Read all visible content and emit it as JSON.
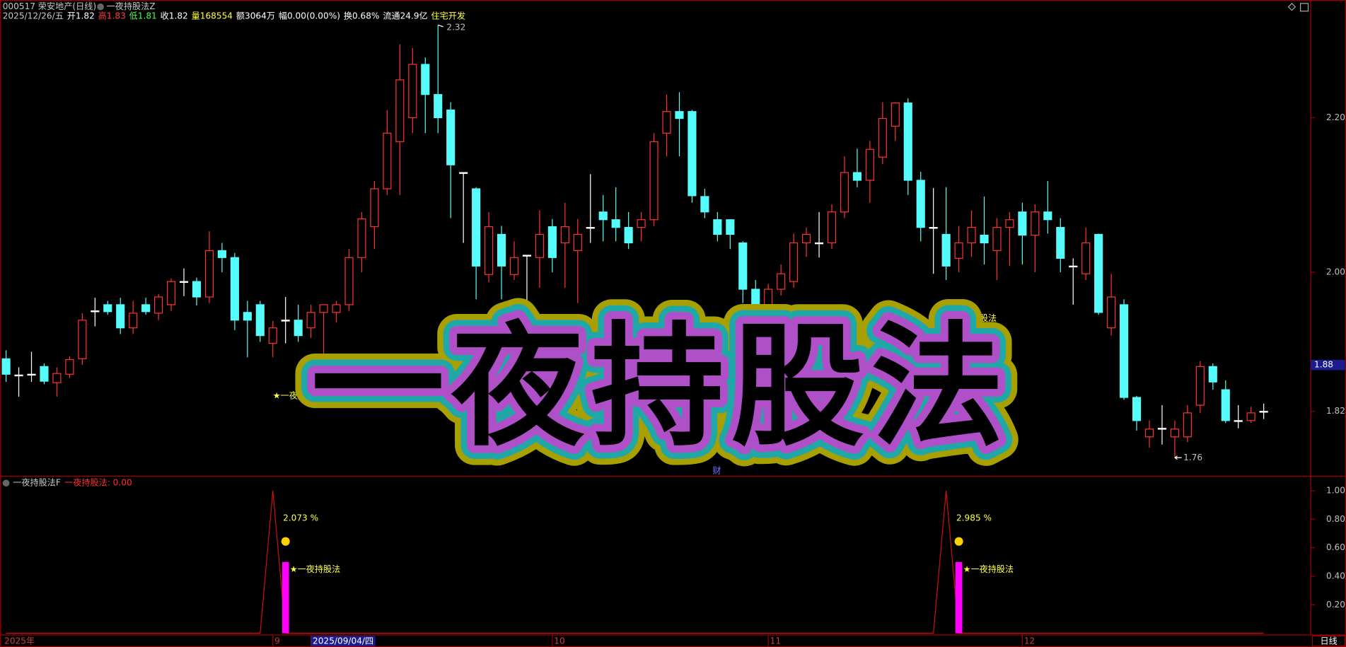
{
  "header": {
    "items": [
      {
        "text": "000517 荣安地产(日线)",
        "color": "#c8c8c8",
        "row": 1
      },
      {
        "text": "一夜持股法Z",
        "color": "#c8c8c8",
        "row": 1
      },
      {
        "text": "2025/12/26/五",
        "color": "#c8c8c8",
        "row": 2
      },
      {
        "text": "开1.82",
        "color": "#ffffff",
        "row": 2
      },
      {
        "text": "高1.83",
        "color": "#ff4040",
        "row": 2
      },
      {
        "text": "低1.81",
        "color": "#40ff40",
        "row": 2
      },
      {
        "text": "收1.82",
        "color": "#ffffff",
        "row": 2
      },
      {
        "text": "量168554",
        "color": "#ffff40",
        "row": 2
      },
      {
        "text": "额3064万",
        "color": "#ffffff",
        "row": 2
      },
      {
        "text": "幅0.00(0.00%)",
        "color": "#ffffff",
        "row": 2
      },
      {
        "text": "换0.68%",
        "color": "#ffffff",
        "row": 2
      },
      {
        "text": "流通24.9亿",
        "color": "#ffffff",
        "row": 2
      },
      {
        "text": "住宅开发",
        "color": "#ffff40",
        "row": 2
      }
    ]
  },
  "overlay_title": "一夜持股法",
  "footer_mark": "财",
  "period_button": "日线",
  "chart_data": [
    {
      "type": "candlestick",
      "up_color": "#ff3232",
      "down_color": "#54fcfc",
      "flat_color": "#ffffff",
      "categories": [
        "2025年",
        null,
        null,
        null,
        null,
        null,
        null,
        null,
        null,
        null,
        null,
        null,
        null,
        null,
        null,
        null,
        null,
        null,
        null,
        null,
        null,
        "9",
        null,
        null,
        "2025/09/04/四",
        null,
        null,
        null,
        null,
        null,
        null,
        null,
        null,
        null,
        null,
        null,
        null,
        null,
        null,
        null,
        null,
        null,
        null,
        "10",
        null,
        null,
        null,
        null,
        null,
        null,
        null,
        null,
        null,
        null,
        null,
        null,
        null,
        null,
        null,
        null,
        "11",
        null,
        null,
        null,
        null,
        null,
        null,
        null,
        null,
        null,
        null,
        null,
        null,
        null,
        null,
        null,
        null,
        null,
        null,
        null,
        "12",
        null,
        null,
        null,
        null,
        null,
        null,
        null,
        null,
        null,
        null,
        null,
        null,
        null,
        null,
        null,
        null,
        null,
        null,
        null
      ],
      "open": [
        1.888,
        1.867,
        1.868,
        1.878,
        1.857,
        1.868,
        1.888,
        1.95,
        1.958,
        1.958,
        1.928,
        1.958,
        1.947,
        1.958,
        1.988,
        1.988,
        1.968,
        2.028,
        2.019,
        1.948,
        1.958,
        1.908,
        1.938,
        1.938,
        1.928,
        1.948,
        1.948,
        1.958,
        2.019,
        2.059,
        2.108,
        2.169,
        2.2,
        2.269,
        2.23,
        2.21,
        2.129,
        2.108,
        1.997,
        2.049,
        1.997,
        2.022,
        2.019,
        2.059,
        2.038,
        2.028,
        2.058,
        2.078,
        2.068,
        2.058,
        2.058,
        2.068,
        2.18,
        2.208,
        2.208,
        2.098,
        2.068,
        2.068,
        2.038,
        1.978,
        1.958,
        1.978,
        1.988,
        2.038,
        2.038,
        2.038,
        2.078,
        2.129,
        2.119,
        2.149,
        2.189,
        2.219,
        2.119,
        2.058,
        2.049,
        2.018,
        2.038,
        2.048,
        2.028,
        2.058,
        2.078,
        2.048,
        2.078,
        2.058,
        2.008,
        1.998,
        2.049,
        1.928,
        1.958,
        1.838,
        1.787,
        1.798,
        1.787,
        1.787,
        1.828,
        1.878,
        1.848,
        1.808,
        1.808,
        1.82
      ],
      "high": [
        1.899,
        1.877,
        1.897,
        1.882,
        1.877,
        1.891,
        1.947,
        1.967,
        1.963,
        1.967,
        1.963,
        1.967,
        1.972,
        1.992,
        2.005,
        1.993,
        2.053,
        2.038,
        2.025,
        1.963,
        1.963,
        1.937,
        1.968,
        1.958,
        1.958,
        1.958,
        1.963,
        2.03,
        2.078,
        2.118,
        2.21,
        2.295,
        2.29,
        2.278,
        2.32,
        2.22,
        2.129,
        2.11,
        2.078,
        2.06,
        2.04,
        2.022,
        2.08,
        2.069,
        2.09,
        2.069,
        2.127,
        2.1,
        2.11,
        2.078,
        2.078,
        2.18,
        2.23,
        2.233,
        2.21,
        2.108,
        2.078,
        2.068,
        2.04,
        1.99,
        1.985,
        2.01,
        2.05,
        2.058,
        2.078,
        2.088,
        2.15,
        2.16,
        2.17,
        2.22,
        2.22,
        2.225,
        2.13,
        2.109,
        2.11,
        2.06,
        2.08,
        2.098,
        2.07,
        2.078,
        2.09,
        2.088,
        2.118,
        2.07,
        2.018,
        2.058,
        2.05,
        1.998,
        1.965,
        1.84,
        1.808,
        1.828,
        1.808,
        1.828,
        1.885,
        1.882,
        1.86,
        1.828,
        1.826,
        1.83
      ],
      "low": [
        1.858,
        1.839,
        1.858,
        1.855,
        1.839,
        1.863,
        1.88,
        1.93,
        1.945,
        1.92,
        1.92,
        1.945,
        1.938,
        1.95,
        1.969,
        1.957,
        1.96,
        2.0,
        1.925,
        1.89,
        1.91,
        1.89,
        1.908,
        1.91,
        1.915,
        1.88,
        1.935,
        1.95,
        2.0,
        2.03,
        2.1,
        2.1,
        2.18,
        2.18,
        2.18,
        2.07,
        2.038,
        1.965,
        1.987,
        1.965,
        1.99,
        1.949,
        1.98,
        2.0,
        1.98,
        1.96,
        2.038,
        2.04,
        2.04,
        2.03,
        2.04,
        2.06,
        2.15,
        2.15,
        2.09,
        2.07,
        2.04,
        2.03,
        1.96,
        1.945,
        1.95,
        1.97,
        1.98,
        2.02,
        2.019,
        2.03,
        2.07,
        2.11,
        2.09,
        2.14,
        2.17,
        2.1,
        2.04,
        1.998,
        1.99,
        2.0,
        2.02,
        2.01,
        1.99,
        2.008,
        2.01,
        2.0,
        2.05,
        2.0,
        1.958,
        1.99,
        1.945,
        1.918,
        1.835,
        1.795,
        1.773,
        1.777,
        1.76,
        1.78,
        1.818,
        1.848,
        1.805,
        1.798,
        1.805,
        1.81
      ],
      "close": [
        1.868,
        1.866,
        1.867,
        1.859,
        1.869,
        1.887,
        1.938,
        1.949,
        1.949,
        1.928,
        1.947,
        1.949,
        1.968,
        1.988,
        1.987,
        1.968,
        2.028,
        2.019,
        1.938,
        1.938,
        1.918,
        1.928,
        1.937,
        1.918,
        1.948,
        1.958,
        1.958,
        2.019,
        2.069,
        2.108,
        2.18,
        2.249,
        2.269,
        2.23,
        2.2,
        2.139,
        2.128,
        2.008,
        2.059,
        2.008,
        2.019,
        2.021,
        2.049,
        2.019,
        2.059,
        2.049,
        2.057,
        2.068,
        2.058,
        2.038,
        2.068,
        2.169,
        2.208,
        2.199,
        2.099,
        2.078,
        2.049,
        2.049,
        1.978,
        1.958,
        1.978,
        1.998,
        2.038,
        2.049,
        2.037,
        2.078,
        2.129,
        2.119,
        2.159,
        2.199,
        2.219,
        2.119,
        2.058,
        2.057,
        2.008,
        2.038,
        2.058,
        2.038,
        2.058,
        2.068,
        2.048,
        2.078,
        2.068,
        2.018,
        2.007,
        2.038,
        1.948,
        1.968,
        1.838,
        1.808,
        1.797,
        1.797,
        1.797,
        1.818,
        1.878,
        1.858,
        1.808,
        1.807,
        1.818,
        1.82
      ],
      "ylim": [
        1.736,
        2.339
      ],
      "yticks": [
        {
          "value": 2.2,
          "label": "2.20"
        },
        {
          "value": 2.0,
          "label": "2.00"
        },
        1.82
      ],
      "price_marker": 1.88,
      "max_label": 2.32,
      "min_label": 1.76,
      "signal_labels": [
        "★一夜持股法",
        "★一夜持股法"
      ]
    },
    {
      "type": "line",
      "indicator_name": "一夜持股法F",
      "value_readout": "一夜持股法: 0.00",
      "series": [
        {
          "color": "#cc1010",
          "values": [
            0,
            0,
            0,
            0,
            0,
            0,
            0,
            0,
            0,
            0,
            0,
            0,
            0,
            0,
            0,
            0,
            0,
            0,
            0,
            0,
            0,
            1,
            0,
            0,
            0,
            0,
            0,
            0,
            0,
            0,
            0,
            0,
            0,
            0,
            0,
            0,
            0,
            0,
            0,
            0,
            0,
            0,
            0,
            0,
            0,
            0,
            0,
            0,
            0,
            0,
            0,
            0,
            0,
            0,
            0,
            0,
            0,
            0,
            0,
            0,
            0,
            0,
            0,
            0,
            0,
            0,
            0,
            0,
            0,
            0,
            0,
            0,
            0,
            0,
            1,
            0,
            0,
            0,
            0,
            0,
            0,
            0,
            0,
            0,
            0,
            0,
            0,
            0,
            0,
            0,
            0,
            0,
            0,
            0,
            0,
            0,
            0,
            0,
            0,
            0
          ]
        }
      ],
      "bars": {
        "color": "#ff00ff",
        "values": [
          null,
          null,
          null,
          null,
          null,
          null,
          null,
          null,
          null,
          null,
          null,
          null,
          null,
          null,
          null,
          null,
          null,
          null,
          null,
          null,
          null,
          null,
          0.5,
          null,
          null,
          null,
          null,
          null,
          null,
          null,
          null,
          null,
          null,
          null,
          null,
          null,
          null,
          null,
          null,
          null,
          null,
          null,
          null,
          null,
          null,
          null,
          null,
          null,
          null,
          null,
          null,
          null,
          null,
          null,
          null,
          null,
          null,
          null,
          null,
          null,
          null,
          null,
          null,
          null,
          null,
          null,
          null,
          null,
          null,
          null,
          null,
          null,
          null,
          null,
          null,
          0.5,
          null,
          null,
          null,
          null,
          null,
          null,
          null,
          null,
          null,
          null,
          null,
          null,
          null,
          null,
          null,
          null,
          null,
          null,
          null,
          null,
          null,
          null,
          null,
          null
        ]
      },
      "signal_notes": [
        {
          "pct": "2.073 %",
          "label": "★一夜持股法"
        },
        {
          "pct": "2.985 %",
          "label": "★一夜持股法"
        }
      ],
      "ylim": [
        0,
        1.09
      ],
      "yticks": [
        {
          "value": 1.0,
          "label": "1.00"
        },
        {
          "value": 0.8,
          "label": "0.80"
        },
        {
          "value": 0.6,
          "label": "0.60"
        },
        {
          "value": 0.4,
          "label": "0.40"
        },
        {
          "value": 0.2,
          "label": "0.20"
        }
      ]
    }
  ]
}
